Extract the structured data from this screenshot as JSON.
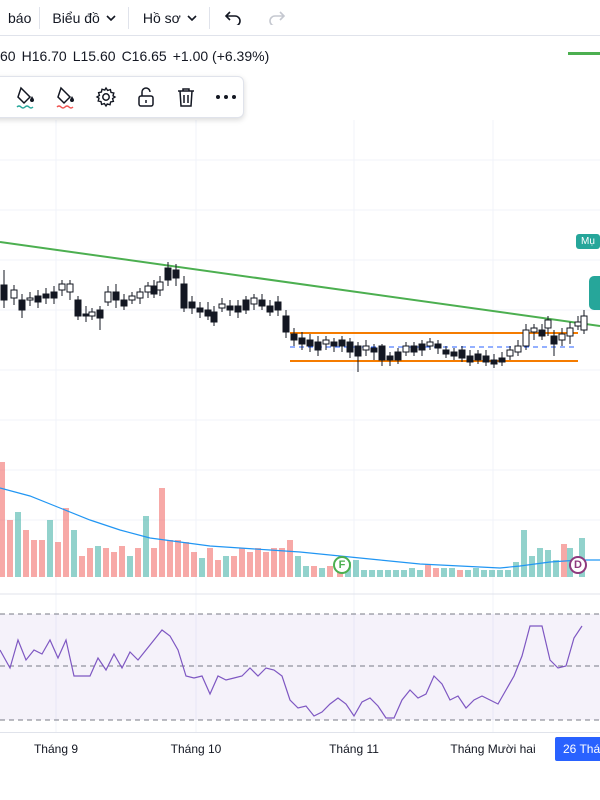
{
  "topbar": {
    "partial_label": "báo",
    "chart_menu": "Biểu đồ",
    "profile_menu": "Hồ sơ"
  },
  "ohlc": {
    "open_partial": "60",
    "high": "H16.70",
    "low": "L15.60",
    "close": "C16.65",
    "change": "+1.00 (+6.39%)"
  },
  "toolbox": {
    "icons": [
      "paint-bucket-icon",
      "paint-bucket-alt-icon",
      "gear-icon",
      "unlock-icon",
      "trash-icon",
      "more-icon"
    ]
  },
  "price_tags": {
    "ma_label": "Mụ",
    "last_label": ""
  },
  "events": {
    "f": "F",
    "d": "D"
  },
  "time_axis": {
    "labels": [
      "Tháng 9",
      "Tháng 10",
      "Tháng 11",
      "Tháng Mười hai"
    ],
    "cursor_label": "26 Thá"
  },
  "colors": {
    "up": "#26a69a",
    "down": "#ef5350",
    "trendline": "#4caf50",
    "range": "#f57c00",
    "rsi": "#7e57c2",
    "vol_ma": "#2196f3"
  }
}
